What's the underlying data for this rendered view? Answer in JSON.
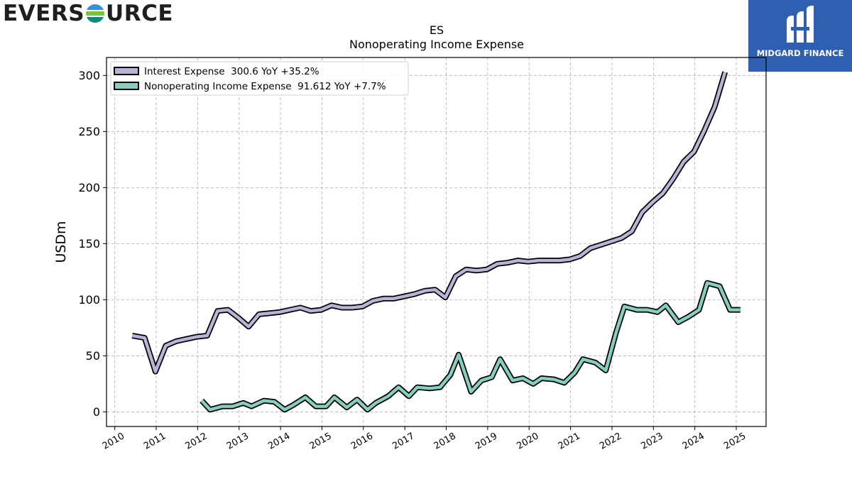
{
  "logos": {
    "left_pre": "EVERS",
    "left_post": "URCE",
    "right_text": "MIDGARD FINANCE"
  },
  "colors": {
    "interest": "#b8b4d8",
    "nonop": "#86cfc0",
    "outline": "#000000",
    "grid": "#b0b0b0",
    "logo_right_bg": "#2f5fb0"
  },
  "chart_data": {
    "type": "line",
    "title": "ES",
    "subtitle": "Nonoperating Income Expense",
    "ylabel": "USDm",
    "xlim": [
      2009.8,
      2025.72
    ],
    "ylim": [
      -13,
      316
    ],
    "yticks": [
      0,
      50,
      100,
      150,
      200,
      250,
      300
    ],
    "xticks": [
      2010,
      2011,
      2012,
      2013,
      2014,
      2015,
      2016,
      2017,
      2018,
      2019,
      2020,
      2021,
      2022,
      2023,
      2024,
      2025
    ],
    "grid": true,
    "legend_position": "top-left",
    "series": [
      {
        "name": "Interest Expense  300.6 YoY +35.2%",
        "color": "#b8b4d8",
        "x": [
          2010.42,
          2010.72,
          2010.98,
          2011.23,
          2011.48,
          2011.73,
          2011.98,
          2012.23,
          2012.48,
          2012.73,
          2012.98,
          2013.23,
          2013.48,
          2013.73,
          2013.98,
          2014.23,
          2014.48,
          2014.73,
          2014.98,
          2015.23,
          2015.48,
          2015.73,
          2015.98,
          2016.23,
          2016.48,
          2016.73,
          2016.98,
          2017.23,
          2017.48,
          2017.73,
          2017.98,
          2018.23,
          2018.48,
          2018.73,
          2018.98,
          2019.23,
          2019.48,
          2019.73,
          2019.98,
          2020.23,
          2020.48,
          2020.73,
          2020.98,
          2021.23,
          2021.48,
          2021.73,
          2021.98,
          2022.23,
          2022.48,
          2022.73,
          2022.98,
          2023.23,
          2023.48,
          2023.73,
          2023.98,
          2024.23,
          2024.48,
          2024.73
        ],
        "values": [
          68,
          66,
          36,
          59,
          63,
          65,
          67,
          68,
          90,
          91,
          84,
          76,
          87,
          88,
          89,
          91,
          93,
          90,
          91,
          95,
          93,
          93,
          94,
          99,
          101,
          101,
          103,
          105,
          108,
          109,
          102,
          121,
          127,
          126,
          127,
          132,
          133,
          135,
          134,
          135,
          135,
          135,
          136,
          139,
          146,
          149,
          152,
          155,
          161,
          178,
          187,
          195,
          208,
          223,
          232,
          251,
          272,
          303
        ]
      },
      {
        "name": "Nonoperating Income Expense  91.612 YoY +7.7%",
        "color": "#86cfc0",
        "x": [
          2012.1,
          2012.3,
          2012.6,
          2012.85,
          2013.1,
          2013.3,
          2013.6,
          2013.85,
          2014.1,
          2014.3,
          2014.6,
          2014.85,
          2015.1,
          2015.3,
          2015.6,
          2015.85,
          2016.1,
          2016.3,
          2016.6,
          2016.85,
          2017.1,
          2017.3,
          2017.6,
          2017.85,
          2018.1,
          2018.3,
          2018.6,
          2018.85,
          2019.1,
          2019.3,
          2019.6,
          2019.85,
          2020.1,
          2020.3,
          2020.6,
          2020.85,
          2021.1,
          2021.3,
          2021.6,
          2021.85,
          2022.1,
          2022.3,
          2022.6,
          2022.85,
          2023.1,
          2023.3,
          2023.6,
          2023.85,
          2024.1,
          2024.3,
          2024.6,
          2024.85,
          2025.1
        ],
        "values": [
          10,
          2,
          5,
          5,
          8,
          5,
          10,
          9,
          2,
          6,
          13,
          5,
          5,
          13,
          4,
          11,
          2,
          8,
          14,
          22,
          14,
          22,
          21,
          22,
          33,
          51,
          18,
          28,
          31,
          47,
          28,
          30,
          25,
          30,
          29,
          26,
          35,
          47,
          44,
          37,
          71,
          94,
          91,
          91,
          89,
          95,
          80,
          85,
          91,
          115,
          112,
          91,
          91
        ]
      }
    ]
  }
}
